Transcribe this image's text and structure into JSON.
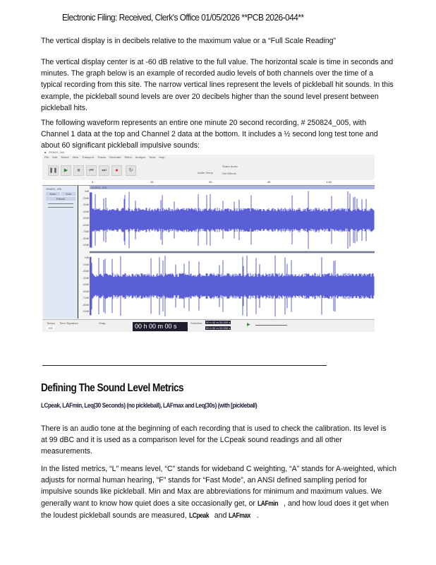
{
  "header": "Electronic Filing: Received, Clerk's Office 01/05/2026 **PCB 2026-044**",
  "para1": "The vertical display is in decibels relative to the maximum value or a “Full Scale Reading”",
  "para2": "The vertical display center is at -60 dB relative to the full value. The horizontal scale is time in seconds and minutes. The graph below is an example of recorded audio levels of both channels over the time of a typical recording from this site. The narrow vertical lines represent the levels of pickleball hit sounds. In this example, the pickleball sound levels are over 20 decibels higher than the sound level present between pickleball hits.",
  "para3": "The following waveform represents an entire one minute 20 second recording, # 250824_005,  with Channel 1 data at the top and Channel 2 data at the bottom. It includes a ½ second long test tone and about  60 significant pickleball impulsive sounds:",
  "screenshot": {
    "window_title": "250824_005",
    "menu": [
      "File",
      "Edit",
      "Select",
      "View",
      "Transport",
      "Tracks",
      "Generate",
      "Effect",
      "Analyze",
      "Tools",
      "Help"
    ],
    "ruler": [
      "0",
      "15",
      "30",
      "45",
      "1:00",
      "1:15"
    ],
    "track_name": "250824_005",
    "mute": "Mute",
    "solo": "Solo",
    "effects": "Effects",
    "clip_name": "250824_005",
    "db_labels": [
      "0dB",
      "-20dB",
      "-30dB",
      "-40dB",
      "-50dB",
      "-60dB",
      "-70dB",
      "-80dB",
      "-90dB"
    ],
    "time_display": "00 h 00 m 00 s",
    "tempo_label": "Tempo",
    "tempo": "120",
    "time_sig_label": "Time Signature",
    "snap_label": "Snap",
    "selection_label": "Selection",
    "selection_start": "00 h 00 m 00.000 s",
    "selection_end": "00 h 00 m 00.000 s",
    "audio_setup": "Audio Setup",
    "share_audio": "Share Audio",
    "get_effects": "Get Effects",
    "waveform_color": "#5b5fd6"
  },
  "section_title": "Defining The Sound Level Metrics",
  "section_subtitle": "LCpeak, LAFmin, Leq(30 Seconds) (no pickleball), LAFmax and Leq(30s) (with [pickleball)",
  "para4": "There is an audio tone at the beginning of each recording that is used to check the calibration. Its level is at 99 dBC and it is used as a comparison level for the LCpeak sound readings and all other measurements.",
  "para5": {
    "text1": "In the listed metrics, “L” means level, “C” stands for wideband C weighting, “A” stands for A-weighted, which adjusts for normal human hearing, “F” stands for “Fast Mode”, an ANSI defined sampling period for impulsive sounds like pickleball. Min and Max are abbreviations for minimum and maximum values. We generally want to know how quiet does a site occasionally get, or ",
    "term1": "LAFmin",
    "text2": "  ,  and how loud does it get when the loudest pickleball sounds are measured, ",
    "term2": "LCpeak",
    "text3": "   and ",
    "term3": "LAFmax",
    "text4": "   ."
  }
}
